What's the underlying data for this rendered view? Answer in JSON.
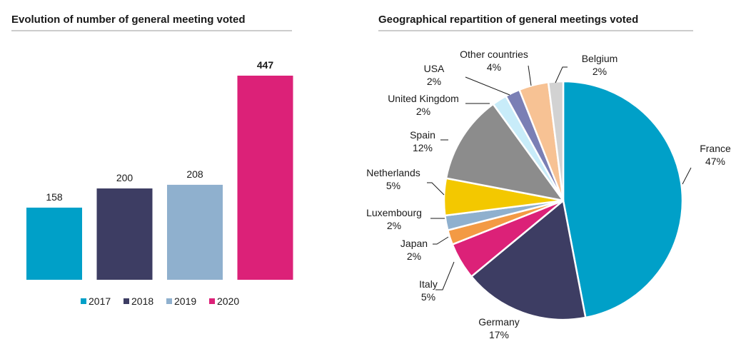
{
  "colors": {
    "c2017": "#00a0c8",
    "c2018": "#3d3d63",
    "c2019": "#8fb0ce",
    "c2020": "#dc2178",
    "rule": "#999999"
  },
  "chart_data": [
    {
      "type": "bar",
      "title": "Evolution of number of general meeting voted",
      "categories": [
        "2017",
        "2018",
        "2019",
        "2020"
      ],
      "values": [
        158,
        200,
        208,
        447
      ],
      "data_labels": [
        "158",
        "200",
        "208",
        "447"
      ],
      "highlight_label": "447",
      "ylim": [
        0,
        447
      ],
      "legend": [
        "2017",
        "2018",
        "2019",
        "2020"
      ],
      "legend_placement": "bottom",
      "grid": false
    },
    {
      "type": "pie",
      "title": "Geographical repartition of general meetings voted",
      "slices": [
        {
          "name": "France",
          "value": 47,
          "label": "47%",
          "color": "#00a0c8"
        },
        {
          "name": "Germany",
          "value": 17,
          "label": "17%",
          "color": "#3d3d63"
        },
        {
          "name": "Italy",
          "value": 5,
          "label": "5%",
          "color": "#dc2178"
        },
        {
          "name": "Japan",
          "value": 2,
          "label": "2%",
          "color": "#f39a44"
        },
        {
          "name": "Luxembourg",
          "value": 2,
          "label": "2%",
          "color": "#8fb0ce"
        },
        {
          "name": "Netherlands",
          "value": 5,
          "label": "5%",
          "color": "#f3c800"
        },
        {
          "name": "Spain",
          "value": 12,
          "label": "12%",
          "color": "#8c8c8c"
        },
        {
          "name": "United Kingdom",
          "value": 2,
          "label": "2%",
          "color": "#c8ecf9"
        },
        {
          "name": "USA",
          "value": 2,
          "label": "2%",
          "color": "#7a7fb5"
        },
        {
          "name": "Other countries",
          "value": 4,
          "label": "4%",
          "color": "#f7c294"
        },
        {
          "name": "Belgium",
          "value": 2,
          "label": "2%",
          "color": "#d2d2d2"
        }
      ]
    }
  ]
}
